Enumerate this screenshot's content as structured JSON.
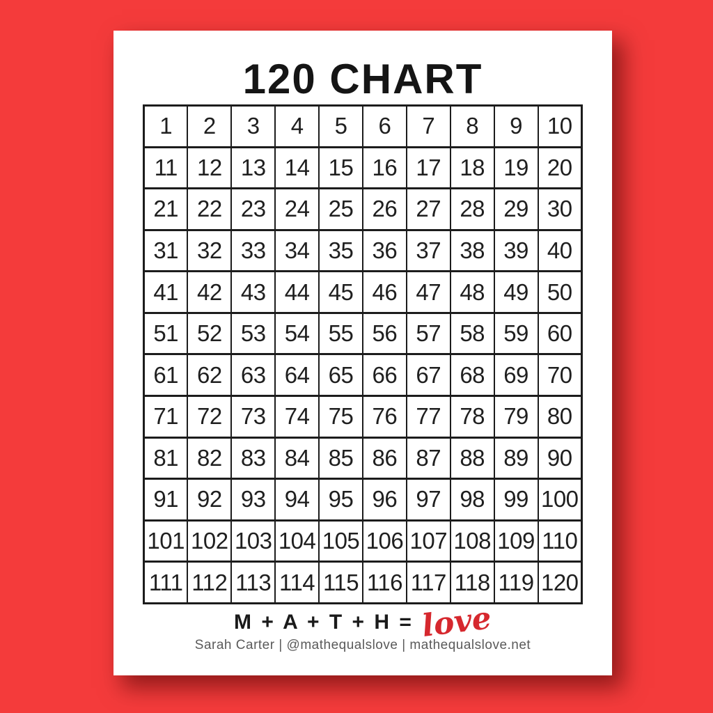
{
  "page": {
    "title": "120 CHART",
    "footer": {
      "equation": "M + A + T + H =",
      "love_word": "love",
      "byline": "Sarah Carter  |  @mathequalslove  |  mathequalslove.net"
    }
  },
  "grid": {
    "columns": 10,
    "rows": [
      [
        1,
        2,
        3,
        4,
        5,
        6,
        7,
        8,
        9,
        10
      ],
      [
        11,
        12,
        13,
        14,
        15,
        16,
        17,
        18,
        19,
        20
      ],
      [
        21,
        22,
        23,
        24,
        25,
        26,
        27,
        28,
        29,
        30
      ],
      [
        31,
        32,
        33,
        34,
        35,
        36,
        37,
        38,
        39,
        40
      ],
      [
        41,
        42,
        43,
        44,
        45,
        46,
        47,
        48,
        49,
        50
      ],
      [
        51,
        52,
        53,
        54,
        55,
        56,
        57,
        58,
        59,
        60
      ],
      [
        61,
        62,
        63,
        64,
        65,
        66,
        67,
        68,
        69,
        70
      ],
      [
        71,
        72,
        73,
        74,
        75,
        76,
        77,
        78,
        79,
        80
      ],
      [
        81,
        82,
        83,
        84,
        85,
        86,
        87,
        88,
        89,
        90
      ],
      [
        91,
        92,
        93,
        94,
        95,
        96,
        97,
        98,
        99,
        100
      ],
      [
        101,
        102,
        103,
        104,
        105,
        106,
        107,
        108,
        109,
        110
      ],
      [
        111,
        112,
        113,
        114,
        115,
        116,
        117,
        118,
        119,
        120
      ]
    ]
  },
  "colors": {
    "background_red": "#f43b3b",
    "page_white": "#ffffff",
    "grid_line": "#1c1c1c",
    "number_text": "#1f1f1f",
    "title_black": "#151515",
    "byline_gray": "#5a5a5a",
    "love_red": "#d6282e"
  }
}
